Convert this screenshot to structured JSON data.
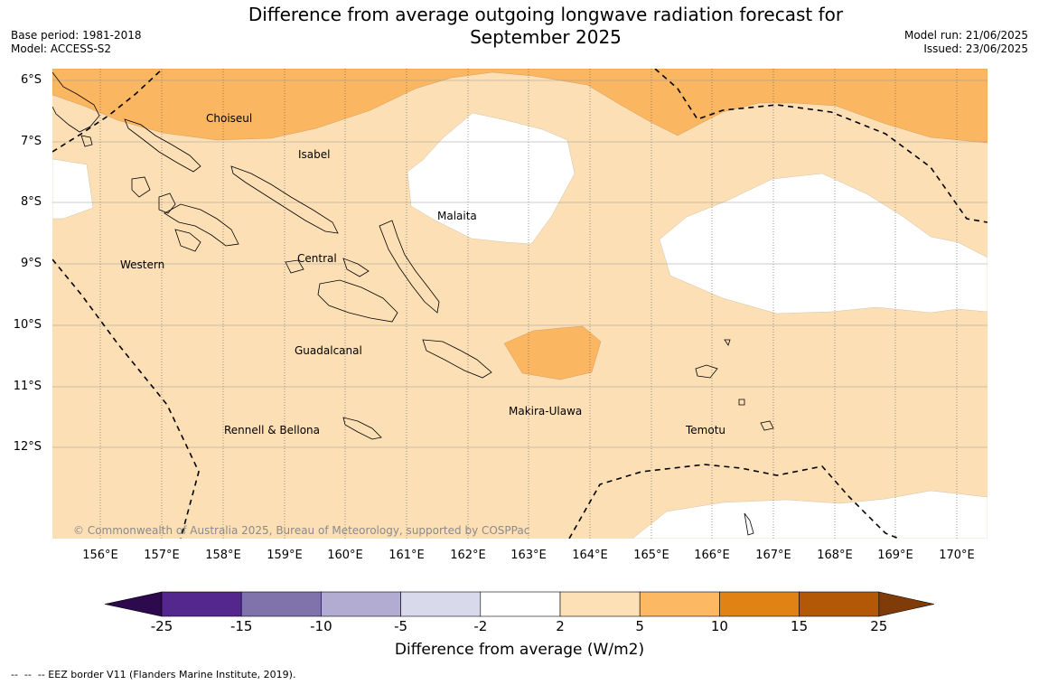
{
  "title": "Difference from average outgoing longwave radiation forecast for September 2025",
  "title_line1": "Difference from average outgoing longwave radiation forecast for",
  "title_line2": "September 2025",
  "base_period": "Base period: 1981-2018",
  "model": "Model: ACCESS-S2",
  "model_run": "Model run: 21/06/2025",
  "issued": "Issued: 23/06/2025",
  "copyright": "© Commonwealth of Australia 2025, Bureau of Meteorology, supported by COSPPac",
  "footnote": "--  --  -- EEZ border V11 (Flanders Marine Institute, 2019).",
  "lat_labels": [
    "6°S",
    "7°S",
    "8°S",
    "9°S",
    "10°S",
    "11°S",
    "12°S"
  ],
  "lon_labels": [
    "156°E",
    "157°E",
    "158°E",
    "159°E",
    "160°E",
    "161°E",
    "162°E",
    "163°E",
    "164°E",
    "165°E",
    "166°E",
    "167°E",
    "168°E",
    "169°E",
    "170°E"
  ],
  "places": {
    "choiseul": "Choiseul",
    "isabel": "Isabel",
    "malaita": "Malaita",
    "western": "Western",
    "central": "Central",
    "guadalcanal": "Guadalcanal",
    "makira": "Makira-Ulawa",
    "temotu": "Temotu",
    "rennell": "Rennell & Bellona"
  },
  "colorbar": {
    "label": "Difference from average (W/m2)",
    "ticks": [
      "-25",
      "-15",
      "-10",
      "-5",
      "-2",
      "2",
      "5",
      "10",
      "15",
      "25"
    ],
    "colors": [
      "#2d0a4e",
      "#54278f",
      "#8073ac",
      "#b2abd2",
      "#d8daeb",
      "#ffffff",
      "#fee0b6",
      "#fdb863",
      "#e08214",
      "#b35806",
      "#7f3b08"
    ]
  },
  "colors": {
    "band_2_5": "#fddfb5",
    "band_5_10": "#fbb661",
    "band_neutral": "#ffffff"
  }
}
